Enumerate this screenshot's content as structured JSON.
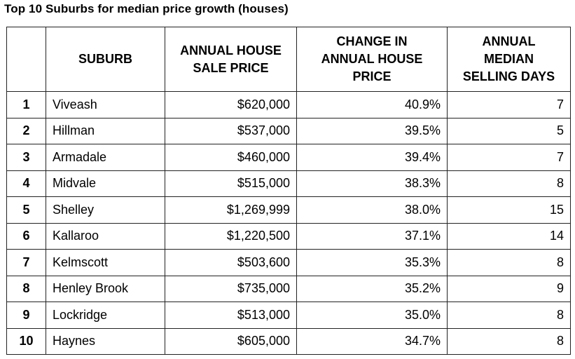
{
  "title": "Top 10 Suburbs for median price growth (houses)",
  "columns": {
    "rank": "",
    "suburb": [
      "SUBURB"
    ],
    "price": [
      "ANNUAL HOUSE",
      "SALE PRICE"
    ],
    "change": [
      "CHANGE IN",
      "ANNUAL HOUSE",
      "PRICE"
    ],
    "days": [
      "ANNUAL",
      "MEDIAN",
      "SELLING DAYS"
    ]
  },
  "rows": [
    {
      "rank": "1",
      "suburb": "Viveash",
      "price": "$620,000",
      "change": "40.9%",
      "days": "7"
    },
    {
      "rank": "2",
      "suburb": "Hillman",
      "price": "$537,000",
      "change": "39.5%",
      "days": "5"
    },
    {
      "rank": "3",
      "suburb": "Armadale",
      "price": "$460,000",
      "change": "39.4%",
      "days": "7"
    },
    {
      "rank": "4",
      "suburb": "Midvale",
      "price": "$515,000",
      "change": "38.3%",
      "days": "8"
    },
    {
      "rank": "5",
      "suburb": "Shelley",
      "price": "$1,269,999",
      "change": "38.0%",
      "days": "15"
    },
    {
      "rank": "6",
      "suburb": "Kallaroo",
      "price": "$1,220,500",
      "change": "37.1%",
      "days": "14"
    },
    {
      "rank": "7",
      "suburb": "Kelmscott",
      "price": "$503,600",
      "change": "35.3%",
      "days": "8"
    },
    {
      "rank": "8",
      "suburb": "Henley Brook",
      "price": "$735,000",
      "change": "35.2%",
      "days": "9"
    },
    {
      "rank": "9",
      "suburb": "Lockridge",
      "price": "$513,000",
      "change": "35.0%",
      "days": "8"
    },
    {
      "rank": "10",
      "suburb": "Haynes",
      "price": "$605,000",
      "change": "34.7%",
      "days": "8"
    }
  ]
}
